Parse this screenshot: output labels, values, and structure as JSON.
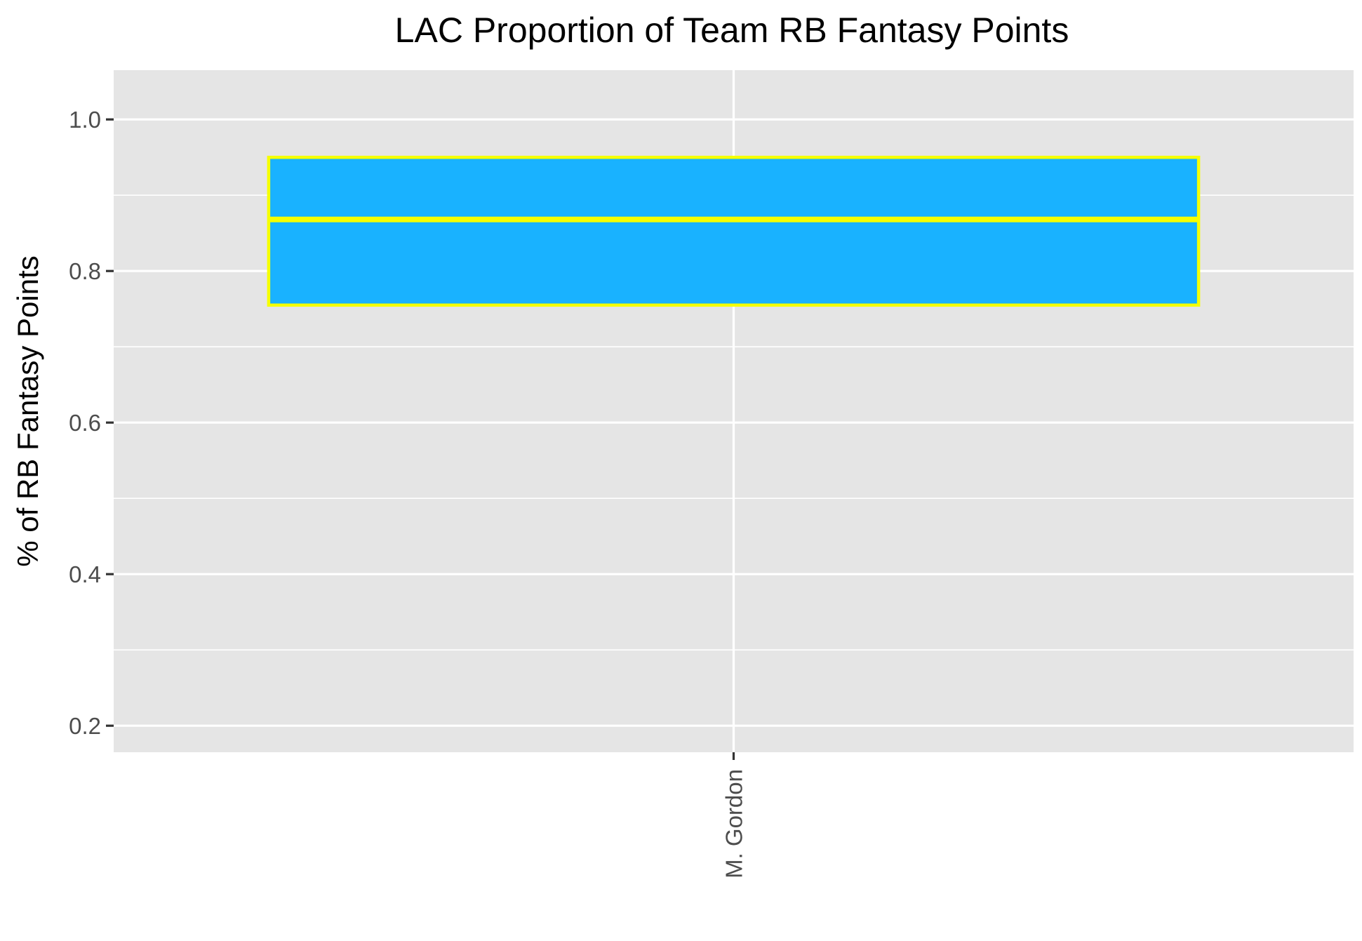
{
  "chart_data": {
    "type": "boxplot",
    "title": "LAC Proportion of Team RB Fantasy Points",
    "xlabel": "",
    "ylabel": "% of RB Fantasy Points",
    "ylim": [
      0.165,
      1.065
    ],
    "y_ticks": [
      0.2,
      0.4,
      0.6,
      0.8,
      1.0
    ],
    "y_tick_labels": [
      "0.2",
      "0.4",
      "0.6",
      "0.8",
      "1.0"
    ],
    "grid": true,
    "categories": [
      "M. Gordon"
    ],
    "boxes": [
      {
        "category": "M. Gordon",
        "q1": 0.755,
        "median": 0.868,
        "q3": 0.95
      }
    ],
    "colors": {
      "box_fill": "#19B2FF",
      "box_outline": "#F5FF00",
      "panel": "#E5E5E5",
      "grid": "#FFFFFF"
    }
  }
}
